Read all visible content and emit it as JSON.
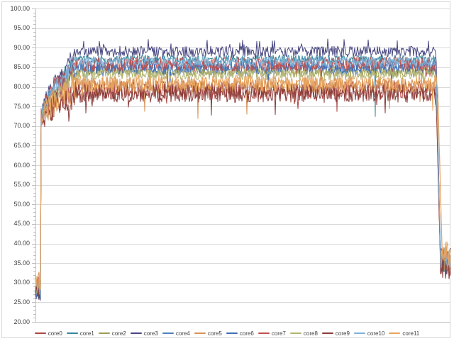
{
  "chart_data": {
    "type": "line",
    "title": "",
    "xlabel": "",
    "ylabel": "",
    "x_axis": {
      "tick_labels_visible": false,
      "n_points": 586
    },
    "y_axis": {
      "min": 20,
      "max": 100,
      "major_step": 5,
      "minor_step": 1,
      "tick_values": [
        100,
        95,
        90,
        85,
        80,
        75,
        70,
        65,
        60,
        55,
        50,
        45,
        40,
        35,
        30,
        25,
        20
      ],
      "tick_labels": [
        "100.00",
        "95.00",
        "90.00",
        "85.00",
        "80.00",
        "75.00",
        "70.00",
        "65.00",
        "60.00",
        "55.00",
        "50.00",
        "45.00",
        "40.00",
        "35.00",
        "30.00",
        "25.00",
        "20.00"
      ],
      "grid": true
    },
    "legend": {
      "position": "bottom"
    },
    "colors": {
      "gridline": "#d9d9d9",
      "axis": "#bfbfbf",
      "tick_text": "#3e3e3e",
      "legend_text": "#404040",
      "background": "#ffffff",
      "border": "#d6d6d6"
    },
    "phases": {
      "cluster_end": 0.012,
      "ramp_end": 0.1,
      "drop_start": 0.965,
      "tail_start": 0.976,
      "description": "all cores idle ~26-34, jump to ~70 then ramp to steady band, steady noisy plateau, sharp drop near right edge back to ~33-38"
    },
    "series": [
      {
        "name": "core0",
        "color": "#AA4643",
        "start_level": 28.5,
        "steady_level": 79.2,
        "noise": 2.4,
        "dip_prob": 0.014,
        "dip_depth": 5,
        "end_level": 34.5
      },
      {
        "name": "core1",
        "color": "#35879E",
        "start_level": 28.0,
        "steady_level": 87.0,
        "noise": 1.1,
        "dip_prob": 0.004,
        "dip_depth": 12,
        "end_level": 36.0
      },
      {
        "name": "core2",
        "color": "#9C9E54",
        "start_level": 29.0,
        "steady_level": 83.8,
        "noise": 1.4,
        "dip_prob": 0.005,
        "dip_depth": 4,
        "end_level": 35.0
      },
      {
        "name": "core3",
        "color": "#474680",
        "start_level": 28.0,
        "steady_level": 89.0,
        "noise": 1.4,
        "dip_prob": 0.003,
        "dip_depth": 3,
        "end_level": 36.5,
        "spike_up": true
      },
      {
        "name": "core4",
        "color": "#5081BE",
        "start_level": 28.5,
        "steady_level": 85.4,
        "noise": 1.5,
        "dip_prob": 0.005,
        "dip_depth": 4,
        "end_level": 35.5
      },
      {
        "name": "core5",
        "color": "#D79357",
        "start_level": 31.0,
        "steady_level": 80.3,
        "noise": 2.3,
        "dip_prob": 0.011,
        "dip_depth": 7,
        "end_level": 37.0,
        "drop_delay": 0.004
      },
      {
        "name": "core6",
        "color": "#3F6EB5",
        "start_level": 28.0,
        "steady_level": 84.6,
        "noise": 1.5,
        "dip_prob": 0.005,
        "dip_depth": 4,
        "end_level": 35.0
      },
      {
        "name": "core7",
        "color": "#C0504D",
        "start_level": 29.0,
        "steady_level": 85.8,
        "noise": 1.9,
        "dip_prob": 0.006,
        "dip_depth": 4,
        "end_level": 36.0
      },
      {
        "name": "core8",
        "color": "#B3B573",
        "start_level": 29.5,
        "steady_level": 83.2,
        "noise": 1.4,
        "dip_prob": 0.005,
        "dip_depth": 4,
        "end_level": 35.5
      },
      {
        "name": "core9",
        "color": "#8A3B38",
        "start_level": 28.0,
        "steady_level": 78.4,
        "noise": 2.4,
        "dip_prob": 0.013,
        "dip_depth": 5,
        "end_level": 34.0
      },
      {
        "name": "core10",
        "color": "#7FB2D8",
        "start_level": 28.5,
        "steady_level": 86.4,
        "noise": 1.2,
        "dip_prob": 0.004,
        "dip_depth": 8,
        "end_level": 36.5
      },
      {
        "name": "core11",
        "color": "#E8A35D",
        "start_level": 30.5,
        "steady_level": 80.8,
        "noise": 2.2,
        "dip_prob": 0.011,
        "dip_depth": 6,
        "end_level": 37.5,
        "drop_delay": 0.004
      }
    ]
  }
}
